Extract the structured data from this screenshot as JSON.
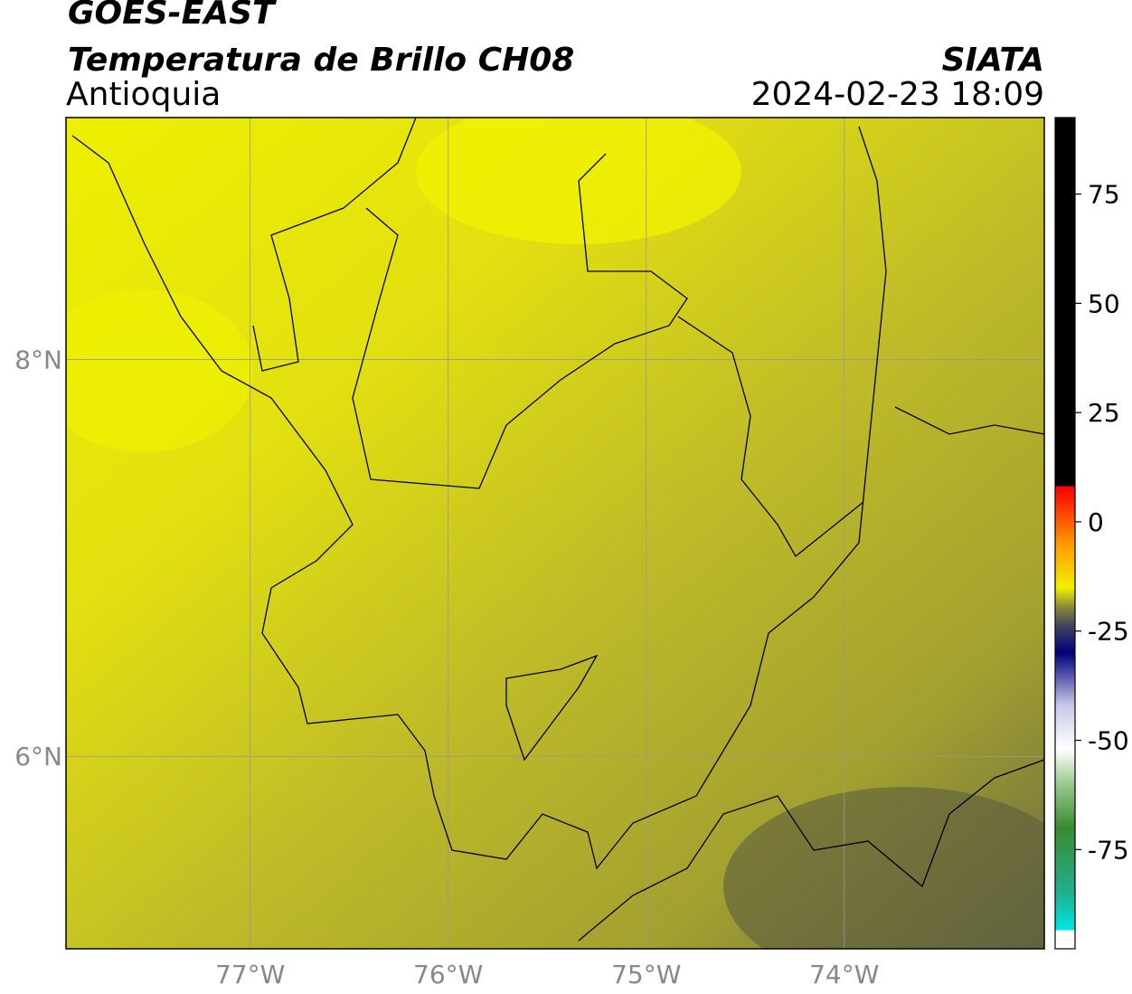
{
  "header": {
    "title": "GOES-EAST",
    "subtitle": "Temperatura de Brillo CH08",
    "region": "Antioquia",
    "source": "SIATA",
    "datetime": "2024-02-23 18:09"
  },
  "map": {
    "xlim": [
      -77.93,
      -72.99
    ],
    "ylim": [
      5.03,
      9.22
    ],
    "xticks": [
      {
        "value": -77,
        "label": "77°W"
      },
      {
        "value": -76,
        "label": "76°W"
      },
      {
        "value": -75,
        "label": "75°W"
      },
      {
        "value": -74,
        "label": "74°W"
      }
    ],
    "yticks": [
      {
        "value": 8,
        "label": "8°N"
      },
      {
        "value": 6,
        "label": "6°N"
      }
    ],
    "grid": true
  },
  "colorbar": {
    "lim": [
      -97.7,
      92.5
    ],
    "ticks": [
      75,
      50,
      25,
      0,
      -25,
      -50,
      -75
    ],
    "colormap": [
      {
        "value": -97.7,
        "color": "#ffffff"
      },
      {
        "value": -93.5,
        "color": "#ffffff"
      },
      {
        "value": -93.4,
        "color": "#00e8e0"
      },
      {
        "value": -85,
        "color": "#20b090"
      },
      {
        "value": -70,
        "color": "#3a8a30"
      },
      {
        "value": -60,
        "color": "#9cc890"
      },
      {
        "value": -52,
        "color": "#ffffff"
      },
      {
        "value": -42,
        "color": "#c8c8e8"
      },
      {
        "value": -30,
        "color": "#00007a"
      },
      {
        "value": -24,
        "color": "#404060"
      },
      {
        "value": -20,
        "color": "#808040"
      },
      {
        "value": -15,
        "color": "#f0f000"
      },
      {
        "value": -5,
        "color": "#ff9900"
      },
      {
        "value": 5,
        "color": "#ff2000"
      },
      {
        "value": 8.1,
        "color": "#ff0000"
      },
      {
        "value": 8.2,
        "color": "#000000"
      },
      {
        "value": 92.5,
        "color": "#000000"
      }
    ]
  }
}
